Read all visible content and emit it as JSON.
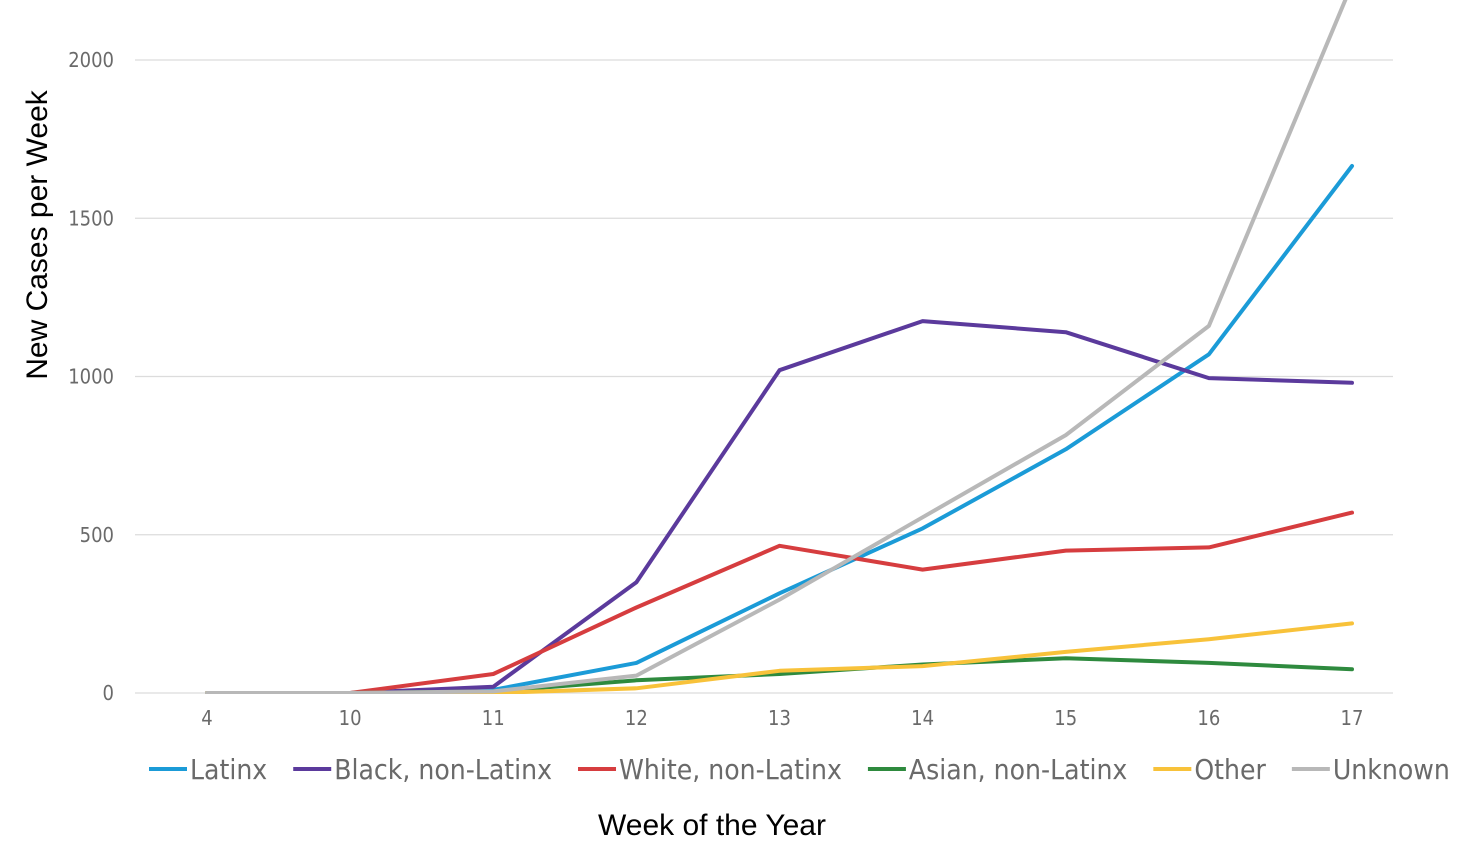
{
  "chart_data": {
    "type": "line",
    "title": "",
    "xlabel": "Week of the Year",
    "ylabel": "New Cases per Week",
    "categories": [
      "4",
      "10",
      "11",
      "12",
      "13",
      "14",
      "15",
      "16",
      "17"
    ],
    "y_ticks": [
      "0",
      "500",
      "1000",
      "1500",
      "2000"
    ],
    "ylim": [
      0,
      2000
    ],
    "grid": true,
    "legend_position": "bottom",
    "series": [
      {
        "name": "Latinx",
        "color": "#1b9bd7",
        "values": [
          0,
          0,
          10,
          95,
          315,
          520,
          770,
          1070,
          1665
        ]
      },
      {
        "name": "Black, non-Latinx",
        "color": "#5b3a9c",
        "values": [
          0,
          0,
          20,
          350,
          1020,
          1175,
          1140,
          995,
          980
        ]
      },
      {
        "name": "White, non-Latinx",
        "color": "#d63d3f",
        "values": [
          0,
          0,
          60,
          270,
          465,
          390,
          450,
          460,
          570
        ]
      },
      {
        "name": "Asian, non-Latinx",
        "color": "#2e8a3e",
        "values": [
          0,
          0,
          5,
          40,
          60,
          90,
          110,
          95,
          75
        ]
      },
      {
        "name": "Other",
        "color": "#f8c23a",
        "values": [
          0,
          0,
          0,
          15,
          70,
          85,
          130,
          170,
          220
        ]
      },
      {
        "name": "Unknown",
        "color": "#b8b8b8",
        "values": [
          0,
          0,
          5,
          55,
          295,
          555,
          815,
          1160,
          2240
        ]
      }
    ]
  }
}
